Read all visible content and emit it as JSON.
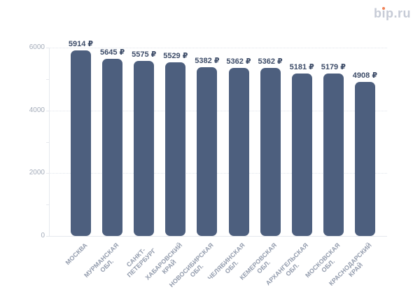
{
  "logo": {
    "text": "bip.ru",
    "part_b": "b",
    "part_i": "ı",
    "part_rest": "p.ru"
  },
  "colors": {
    "bar_color": "#4d5f7e",
    "value_label_color": "#3d4c68",
    "y_label_color": "#a3abb9",
    "x_label_color": "#939cad",
    "grid_color": "#e0e4eb",
    "axis_color": "#e6e9ee",
    "logo_color": "#c6cbd6",
    "logo_dot_color": "#f08055"
  },
  "chart_data": {
    "type": "bar",
    "title": "",
    "xlabel": "",
    "ylabel": "",
    "categories": [
      "МОСКВА",
      "МУРМАНСКАЯ\nОБЛ.",
      "САНКТ-\nПЕТЕРБУРГ",
      "ХАБАРОВСКИЙ\nКРАЙ",
      "НОВОСИБИРСКАЯ\nОБЛ.",
      "ЧЕЛЯБИНСКАЯ\nОБЛ.",
      "КЕМЕРОВСКАЯ\nОБЛ.",
      "АРХАНГЕЛЬСКАЯ\nОБЛ.",
      "МОСКОВСКАЯ\nОБЛ.",
      "КРАСНОДАРСКИЙ\nКРАЙ"
    ],
    "values": [
      5914,
      5645,
      5575,
      5529,
      5382,
      5362,
      5362,
      5181,
      5179,
      4908
    ],
    "value_suffix": " ₽",
    "value_labels": [
      "5914 ₽",
      "5645 ₽",
      "5575 ₽",
      "5529 ₽",
      "5382 ₽",
      "5362 ₽",
      "5362 ₽",
      "5181 ₽",
      "5179 ₽",
      "4908 ₽"
    ],
    "ylim": [
      0,
      6000
    ],
    "yticks": [
      0,
      2000,
      4000,
      6000
    ],
    "yticks_minor": [
      1000,
      3000,
      5000
    ],
    "grid": "horizontal dotted at major ticks",
    "legend": "none",
    "x_tick_rotation_deg": 45
  }
}
